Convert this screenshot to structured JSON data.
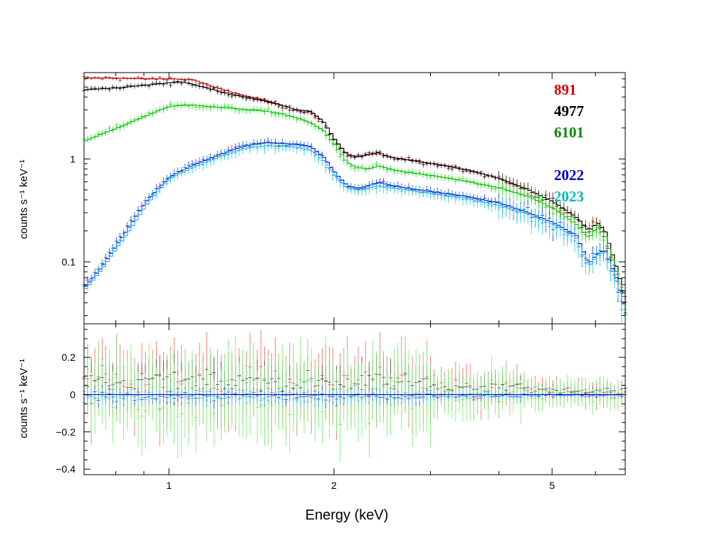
{
  "chart_data": [
    {
      "type": "scatter",
      "panel": "spectrum",
      "ylabel": "counts s⁻¹ keV⁻¹",
      "xscale": "log",
      "yscale": "log",
      "xlim": [
        0.7,
        6.8
      ],
      "ylim": [
        0.025,
        6.9
      ],
      "yticks": [
        {
          "value": 0.1,
          "label": "0.1"
        },
        {
          "value": 1,
          "label": "1"
        }
      ],
      "grid": false,
      "legend_position": "top-right",
      "series": [
        {
          "name": "891",
          "color": "#dd0000",
          "model_color": "#b00000",
          "points": [
            [
              0.7,
              6.1
            ],
            [
              0.8,
              6.1
            ],
            [
              0.9,
              6.0
            ],
            [
              1.0,
              6.0
            ],
            [
              1.1,
              5.9
            ],
            [
              1.2,
              5.0
            ],
            [
              1.3,
              4.4
            ],
            [
              1.4,
              4.0
            ],
            [
              1.5,
              3.7
            ],
            [
              1.6,
              3.3
            ],
            [
              1.7,
              3.0
            ],
            [
              1.8,
              2.9
            ],
            [
              1.9,
              2.3
            ],
            [
              2.0,
              1.5
            ],
            [
              2.1,
              1.1
            ],
            [
              2.2,
              1.05
            ],
            [
              2.3,
              1.1
            ],
            [
              2.4,
              1.15
            ],
            [
              2.5,
              1.05
            ],
            [
              2.7,
              0.98
            ],
            [
              3.0,
              0.9
            ],
            [
              3.5,
              0.78
            ],
            [
              4.0,
              0.64
            ],
            [
              4.5,
              0.5
            ],
            [
              5.0,
              0.38
            ],
            [
              5.5,
              0.27
            ],
            [
              5.8,
              0.2
            ],
            [
              6.0,
              0.24
            ],
            [
              6.2,
              0.2
            ],
            [
              6.5,
              0.09
            ],
            [
              6.8,
              0.04
            ]
          ]
        },
        {
          "name": "4977",
          "color": "#000000",
          "model_color": "#000000",
          "points": [
            [
              0.7,
              4.7
            ],
            [
              0.8,
              4.9
            ],
            [
              0.9,
              5.2
            ],
            [
              1.0,
              5.5
            ],
            [
              1.05,
              5.6
            ],
            [
              1.1,
              5.3
            ],
            [
              1.2,
              4.7
            ],
            [
              1.3,
              4.2
            ],
            [
              1.4,
              3.9
            ],
            [
              1.5,
              3.6
            ],
            [
              1.6,
              3.3
            ],
            [
              1.7,
              3.0
            ],
            [
              1.8,
              2.9
            ],
            [
              1.9,
              2.3
            ],
            [
              2.0,
              1.5
            ],
            [
              2.1,
              1.1
            ],
            [
              2.2,
              1.05
            ],
            [
              2.3,
              1.1
            ],
            [
              2.4,
              1.15
            ],
            [
              2.5,
              1.05
            ],
            [
              2.7,
              0.98
            ],
            [
              3.0,
              0.9
            ],
            [
              3.5,
              0.78
            ],
            [
              4.0,
              0.64
            ],
            [
              4.5,
              0.5
            ],
            [
              5.0,
              0.38
            ],
            [
              5.5,
              0.27
            ],
            [
              5.8,
              0.2
            ],
            [
              6.0,
              0.24
            ],
            [
              6.2,
              0.2
            ],
            [
              6.5,
              0.09
            ],
            [
              6.8,
              0.04
            ]
          ]
        },
        {
          "name": "6101",
          "color": "#00dd00",
          "model_color": "#00bb00",
          "points": [
            [
              0.7,
              1.5
            ],
            [
              0.75,
              1.75
            ],
            [
              0.8,
              2.0
            ],
            [
              0.85,
              2.3
            ],
            [
              0.9,
              2.6
            ],
            [
              0.95,
              2.95
            ],
            [
              1.0,
              3.25
            ],
            [
              1.1,
              3.35
            ],
            [
              1.2,
              3.2
            ],
            [
              1.3,
              3.1
            ],
            [
              1.4,
              3.0
            ],
            [
              1.5,
              2.9
            ],
            [
              1.6,
              2.75
            ],
            [
              1.7,
              2.5
            ],
            [
              1.8,
              2.25
            ],
            [
              1.9,
              1.9
            ],
            [
              2.0,
              1.35
            ],
            [
              2.1,
              0.92
            ],
            [
              2.2,
              0.82
            ],
            [
              2.3,
              0.8
            ],
            [
              2.4,
              0.86
            ],
            [
              2.5,
              0.8
            ],
            [
              2.7,
              0.74
            ],
            [
              3.0,
              0.69
            ],
            [
              3.5,
              0.6
            ],
            [
              4.0,
              0.52
            ],
            [
              4.5,
              0.43
            ],
            [
              5.0,
              0.33
            ],
            [
              5.5,
              0.23
            ],
            [
              5.8,
              0.17
            ],
            [
              6.0,
              0.22
            ],
            [
              6.2,
              0.18
            ],
            [
              6.5,
              0.08
            ],
            [
              6.8,
              0.035
            ]
          ]
        },
        {
          "name": "2022",
          "color": "#0000dd",
          "model_color": "#0000cc",
          "points": [
            [
              0.7,
              0.058
            ],
            [
              0.75,
              0.09
            ],
            [
              0.8,
              0.15
            ],
            [
              0.85,
              0.24
            ],
            [
              0.9,
              0.38
            ],
            [
              0.95,
              0.52
            ],
            [
              1.0,
              0.68
            ],
            [
              1.1,
              0.87
            ],
            [
              1.2,
              1.05
            ],
            [
              1.3,
              1.23
            ],
            [
              1.4,
              1.38
            ],
            [
              1.5,
              1.44
            ],
            [
              1.6,
              1.41
            ],
            [
              1.7,
              1.4
            ],
            [
              1.8,
              1.32
            ],
            [
              1.9,
              1.05
            ],
            [
              2.0,
              0.72
            ],
            [
              2.1,
              0.55
            ],
            [
              2.2,
              0.52
            ],
            [
              2.3,
              0.55
            ],
            [
              2.4,
              0.59
            ],
            [
              2.5,
              0.56
            ],
            [
              2.7,
              0.52
            ],
            [
              3.0,
              0.48
            ],
            [
              3.5,
              0.43
            ],
            [
              4.0,
              0.37
            ],
            [
              4.5,
              0.3
            ],
            [
              5.0,
              0.24
            ],
            [
              5.5,
              0.18
            ],
            [
              5.8,
              0.095
            ],
            [
              6.0,
              0.12
            ],
            [
              6.2,
              0.13
            ],
            [
              6.5,
              0.07
            ],
            [
              6.8,
              0.03
            ]
          ]
        },
        {
          "name": "2023",
          "color": "#00cccc",
          "model_color": "#33aaff",
          "points": [
            [
              0.7,
              0.055
            ],
            [
              0.75,
              0.085
            ],
            [
              0.8,
              0.14
            ],
            [
              0.85,
              0.22
            ],
            [
              0.9,
              0.35
            ],
            [
              0.95,
              0.49
            ],
            [
              1.0,
              0.65
            ],
            [
              1.1,
              0.83
            ],
            [
              1.2,
              1.0
            ],
            [
              1.3,
              1.17
            ],
            [
              1.4,
              1.3
            ],
            [
              1.5,
              1.34
            ],
            [
              1.6,
              1.32
            ],
            [
              1.7,
              1.3
            ],
            [
              1.8,
              1.22
            ],
            [
              1.9,
              0.98
            ],
            [
              2.0,
              0.68
            ],
            [
              2.1,
              0.52
            ],
            [
              2.2,
              0.5
            ],
            [
              2.3,
              0.52
            ],
            [
              2.4,
              0.55
            ],
            [
              2.5,
              0.53
            ],
            [
              2.7,
              0.5
            ],
            [
              3.0,
              0.46
            ],
            [
              3.5,
              0.41
            ],
            [
              4.0,
              0.35
            ],
            [
              4.5,
              0.29
            ],
            [
              5.0,
              0.23
            ],
            [
              5.5,
              0.17
            ],
            [
              5.8,
              0.09
            ],
            [
              6.0,
              0.115
            ],
            [
              6.2,
              0.125
            ],
            [
              6.5,
              0.065
            ],
            [
              6.8,
              0.03
            ]
          ]
        }
      ]
    },
    {
      "type": "scatter",
      "panel": "residuals",
      "xlabel": "Energy (keV)",
      "ylabel": "counts s⁻¹ keV⁻¹",
      "xscale": "log",
      "xlim": [
        0.7,
        6.8
      ],
      "ylim": [
        -0.43,
        0.38
      ],
      "xticks": [
        {
          "value": 1,
          "label": "1"
        },
        {
          "value": 2,
          "label": "2"
        },
        {
          "value": 5,
          "label": "5"
        }
      ],
      "yticks": [
        {
          "value": -0.4,
          "label": "−0.4"
        },
        {
          "value": -0.2,
          "label": "−0.2"
        },
        {
          "value": 0,
          "label": "0"
        },
        {
          "value": 0.2,
          "label": "0.2"
        }
      ],
      "grid": false,
      "series": [
        {
          "name": "891",
          "color": "#ff4444",
          "scatter": 0.18,
          "bias": 0.05
        },
        {
          "name": "4977",
          "color": "#333333",
          "scatter": 0.09,
          "bias": 0.07
        },
        {
          "name": "6101",
          "color": "#55ee55",
          "scatter": 0.2,
          "bias": 0.0
        },
        {
          "name": "2022",
          "color": "#2222dd",
          "scatter": 0.035,
          "bias": -0.01
        },
        {
          "name": "2023",
          "color": "#33cccc",
          "scatter": 0.04,
          "bias": -0.01
        }
      ]
    }
  ],
  "legend": [
    {
      "label": "891",
      "color": "#dd0000"
    },
    {
      "label": "4977",
      "color": "#000000"
    },
    {
      "label": "6101",
      "color": "#008800"
    },
    {
      "label": "2022",
      "color": "#0000cc"
    },
    {
      "label": "2023",
      "color": "#00bbbb"
    }
  ]
}
